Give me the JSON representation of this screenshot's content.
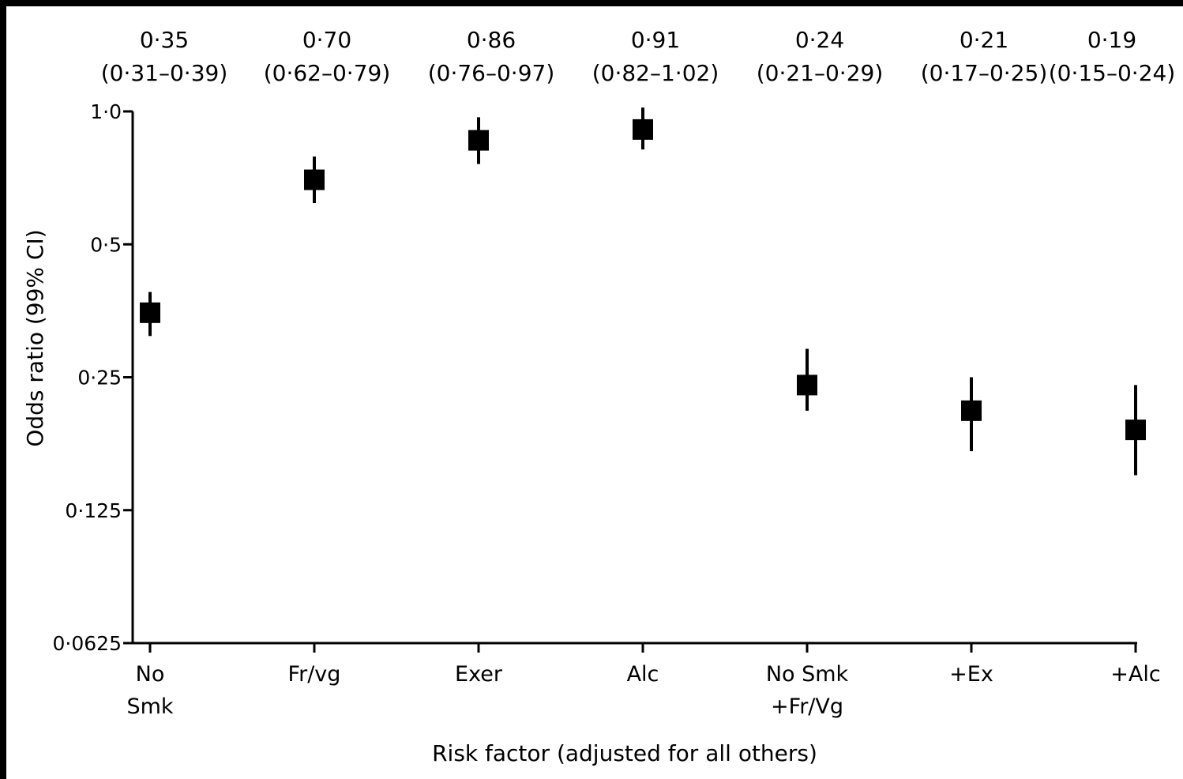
{
  "chart_data": {
    "type": "scatter",
    "title": "",
    "xlabel": "Risk factor (adjusted for all others)",
    "ylabel": "Odds ratio (99% CI)",
    "y_scale": "log2",
    "ylim": [
      0.0625,
      1.0
    ],
    "y_ticks": [
      {
        "value": 1.0,
        "label": "1·0"
      },
      {
        "value": 0.5,
        "label": "0·5"
      },
      {
        "value": 0.25,
        "label": "0·25"
      },
      {
        "value": 0.125,
        "label": "0·125"
      },
      {
        "value": 0.0625,
        "label": "0·0625"
      }
    ],
    "grid": false,
    "marker": "square",
    "colors": {
      "marker": "#000000",
      "axis": "#000000",
      "frame": "#000000"
    },
    "points": [
      {
        "category": [
          "No",
          "Smk"
        ],
        "or": 0.35,
        "ci_low": 0.31,
        "ci_high": 0.39,
        "est_label": "0·35",
        "ci_label": "(0·31–0·39)"
      },
      {
        "category": [
          "Fr/vg"
        ],
        "or": 0.7,
        "ci_low": 0.62,
        "ci_high": 0.79,
        "est_label": "0·70",
        "ci_label": "(0·62–0·79)"
      },
      {
        "category": [
          "Exer"
        ],
        "or": 0.86,
        "ci_low": 0.76,
        "ci_high": 0.97,
        "est_label": "0·86",
        "ci_label": "(0·76–0·97)"
      },
      {
        "category": [
          "Alc"
        ],
        "or": 0.91,
        "ci_low": 0.82,
        "ci_high": 1.02,
        "est_label": "0·91",
        "ci_label": "(0·82–1·02)"
      },
      {
        "category": [
          "No Smk",
          "+Fr/Vg"
        ],
        "or": 0.24,
        "ci_low": 0.21,
        "ci_high": 0.29,
        "est_label": "0·24",
        "ci_label": "(0·21–0·29)"
      },
      {
        "category": [
          "+Ex"
        ],
        "or": 0.21,
        "ci_low": 0.17,
        "ci_high": 0.25,
        "est_label": "0·21",
        "ci_label": "(0·17–0·25)"
      },
      {
        "category": [
          "+Alc"
        ],
        "or": 0.19,
        "ci_low": 0.15,
        "ci_high": 0.24,
        "est_label": "0·19",
        "ci_label": "(0·15–0·24)"
      }
    ]
  }
}
